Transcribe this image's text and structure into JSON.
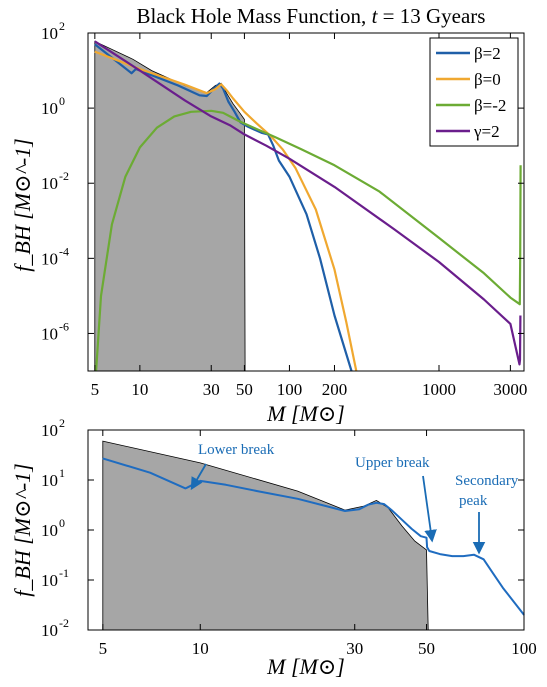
{
  "chart_data": [
    {
      "type": "line",
      "title": "Black Hole Mass Function, t = 13 Gyears",
      "xlabel": "M [M⊙]",
      "ylabel": "f_BH [M⊙^-1]",
      "xscale": "log",
      "yscale": "log",
      "xlim": [
        4.5,
        3700
      ],
      "ylim": [
        1e-07,
        100
      ],
      "xticks": [
        5,
        10,
        30,
        50,
        100,
        200,
        1000,
        3000
      ],
      "xtick_labels": [
        "5",
        "10",
        "30",
        "50",
        "100",
        "200",
        "1000",
        "3000"
      ],
      "yticks": [
        1e-06,
        0.0001,
        0.01,
        1,
        100
      ],
      "ytick_labels": [
        {
          "base": "10",
          "exp": "-6"
        },
        {
          "base": "10",
          "exp": "-4"
        },
        {
          "base": "10",
          "exp": "-2"
        },
        {
          "base": "10",
          "exp": "0"
        },
        {
          "base": "10",
          "exp": "2"
        }
      ],
      "legend_position": "top-right",
      "shaded_region": {
        "color": "#a6a6a6",
        "points": [
          [
            5,
            60
          ],
          [
            9,
            20
          ],
          [
            12,
            10
          ],
          [
            20,
            4
          ],
          [
            28,
            2.6
          ],
          [
            32,
            4
          ],
          [
            35,
            4.6
          ],
          [
            38,
            2.5
          ],
          [
            42,
            1.3
          ],
          [
            46,
            0.8
          ],
          [
            50,
            0.5
          ],
          [
            50.5,
            1e-07
          ],
          [
            5,
            1e-07
          ]
        ]
      },
      "series": [
        {
          "name": "β=2",
          "color": "#1f5fa8",
          "x": [
            5,
            8.8,
            9.4,
            12,
            18,
            25,
            28,
            31,
            34,
            36,
            39,
            43,
            47,
            52,
            58,
            65,
            72,
            78,
            85,
            100,
            130,
            160,
            200,
            260
          ],
          "y": [
            50,
            8.5,
            11,
            7.5,
            4,
            2.2,
            2.1,
            3.2,
            4.5,
            3.3,
            1.5,
            0.8,
            0.42,
            0.33,
            0.27,
            0.22,
            0.2,
            0.1,
            0.04,
            0.015,
            0.0015,
            0.0001,
            3e-06,
            1e-07
          ]
        },
        {
          "name": "β=0",
          "color": "#f0a830",
          "x": [
            5,
            10,
            20,
            28,
            32,
            35,
            38,
            42,
            50,
            60,
            75,
            90,
            110,
            150,
            200,
            240,
            280
          ],
          "y": [
            32,
            11,
            4.2,
            2.5,
            3.2,
            4.3,
            3,
            1.8,
            0.8,
            0.4,
            0.18,
            0.08,
            0.025,
            0.002,
            5e-05,
            2e-06,
            1e-07
          ]
        },
        {
          "name": "β=-2",
          "color": "#6cab34",
          "x": [
            5.1,
            5.5,
            6.5,
            8,
            10,
            13,
            17,
            22,
            30,
            36,
            40,
            46,
            60,
            80,
            120,
            200,
            400,
            1000,
            2000,
            3000,
            3470,
            3490,
            3510
          ],
          "y": [
            1e-07,
            1e-05,
            0.0008,
            0.015,
            0.09,
            0.3,
            0.6,
            0.8,
            0.85,
            0.75,
            0.6,
            0.45,
            0.28,
            0.17,
            0.08,
            0.03,
            0.006,
            0.00035,
            4e-05,
            9e-06,
            6e-06,
            0.0001,
            0.03
          ]
        },
        {
          "name": "γ=2",
          "color": "#6a1e8c",
          "x": [
            5,
            10,
            20,
            30,
            40,
            50,
            70,
            100,
            200,
            500,
            1000,
            2000,
            3000,
            3450,
            3480,
            3500
          ],
          "y": [
            60,
            10,
            1.6,
            0.6,
            0.35,
            0.2,
            0.1,
            0.045,
            0.008,
            0.0006,
            8e-05,
            8e-06,
            1.8e-06,
            1.5e-07,
            2e-07,
            3e-06
          ]
        }
      ]
    },
    {
      "type": "line",
      "xlabel": "M [M⊙]",
      "ylabel": "f_BH [M⊙^-1]",
      "xscale": "log",
      "yscale": "log",
      "xlim": [
        4.5,
        100
      ],
      "ylim": [
        0.01,
        100
      ],
      "xticks": [
        5,
        10,
        30,
        50,
        100
      ],
      "xtick_labels": [
        "5",
        "10",
        "30",
        "50",
        "100"
      ],
      "yticks": [
        0.01,
        0.1,
        1,
        10,
        100
      ],
      "ytick_labels": [
        {
          "base": "10",
          "exp": "-2"
        },
        {
          "base": "10",
          "exp": "-1"
        },
        {
          "base": "10",
          "exp": "0"
        },
        {
          "base": "10",
          "exp": "1"
        },
        {
          "base": "10",
          "exp": "2"
        }
      ],
      "shaded_region": {
        "color": "#a6a6a6",
        "points": [
          [
            5,
            60
          ],
          [
            10,
            22
          ],
          [
            20,
            6
          ],
          [
            28,
            2.5
          ],
          [
            32,
            3
          ],
          [
            35,
            3.9
          ],
          [
            38,
            2.8
          ],
          [
            42,
            1.2
          ],
          [
            46,
            0.6
          ],
          [
            50,
            0.4
          ],
          [
            50.6,
            0.01
          ],
          [
            5,
            0.01
          ]
        ]
      },
      "series": [
        {
          "name": "β=2",
          "color": "#1f6cc0",
          "x": [
            5,
            7,
            9,
            9.1,
            10,
            12,
            15,
            20,
            25,
            28,
            31,
            33,
            35,
            37,
            39,
            42,
            45,
            48,
            50,
            50.2,
            51,
            55,
            60,
            65,
            70,
            75,
            80,
            86,
            92,
            100
          ],
          "y": [
            27,
            14,
            6.8,
            7,
            9.6,
            8,
            6,
            4.2,
            2.9,
            2.4,
            2.6,
            3.2,
            3.5,
            3.3,
            2.5,
            1.6,
            1.05,
            0.75,
            0.7,
            0.45,
            0.38,
            0.33,
            0.3,
            0.3,
            0.32,
            0.26,
            0.14,
            0.07,
            0.04,
            0.02
          ]
        }
      ],
      "annotations": [
        {
          "text": "Lower break",
          "x": 9,
          "y": 7
        },
        {
          "text": "Upper break",
          "x": 49,
          "y": 0.75
        },
        {
          "text": "Secondary",
          "x": 71,
          "y": 0.4
        },
        {
          "text": "peak",
          "x": 71,
          "y": 0.4
        }
      ]
    }
  ]
}
